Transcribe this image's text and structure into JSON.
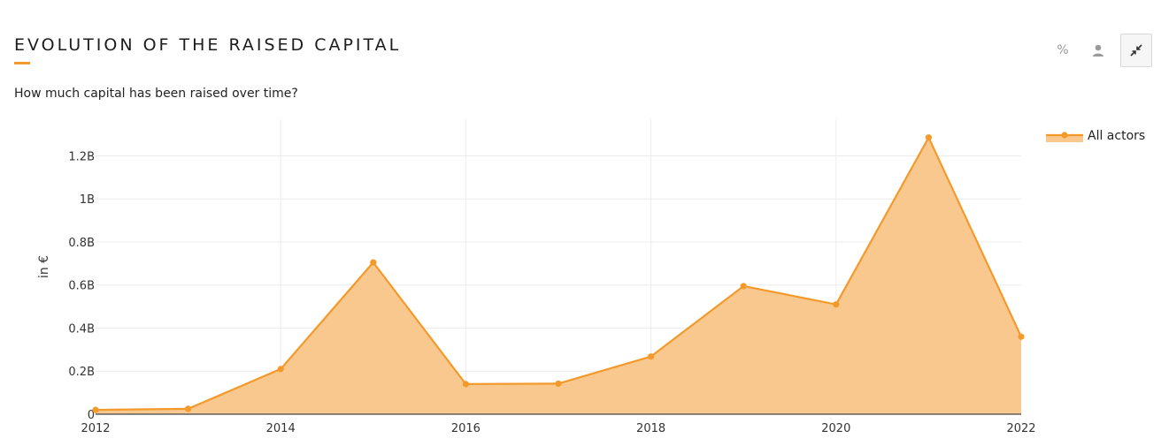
{
  "header": {
    "title": "EVOLUTION OF THE RAISED CAPITAL",
    "subtitle": "How much capital has been raised over time?"
  },
  "toolbar": {
    "percent_label": "%",
    "icons": [
      "percent-icon",
      "person-icon",
      "collapse-icon"
    ]
  },
  "colors": {
    "accent": "#f39a2b",
    "fill": "#f8c88e"
  },
  "chart_data": {
    "type": "area",
    "x": [
      2012,
      2013,
      2014,
      2015,
      2016,
      2017,
      2018,
      2019,
      2020,
      2021,
      2022
    ],
    "series": [
      {
        "name": "All actors",
        "values": [
          0.02,
          0.025,
          0.21,
          0.705,
          0.14,
          0.142,
          0.268,
          0.595,
          0.51,
          1.285,
          0.36
        ]
      }
    ],
    "value_unit": "B",
    "ylabel": "in €",
    "xlim": [
      2012,
      2022
    ],
    "ylim": [
      0,
      1.37
    ],
    "x_ticks": [
      "2012",
      "2014",
      "2016",
      "2018",
      "2020",
      "2022"
    ],
    "y_ticks": [
      "0",
      "0.2B",
      "0.4B",
      "0.6B",
      "0.8B",
      "1B",
      "1.2B"
    ],
    "grid": true,
    "legend": "top-right"
  }
}
